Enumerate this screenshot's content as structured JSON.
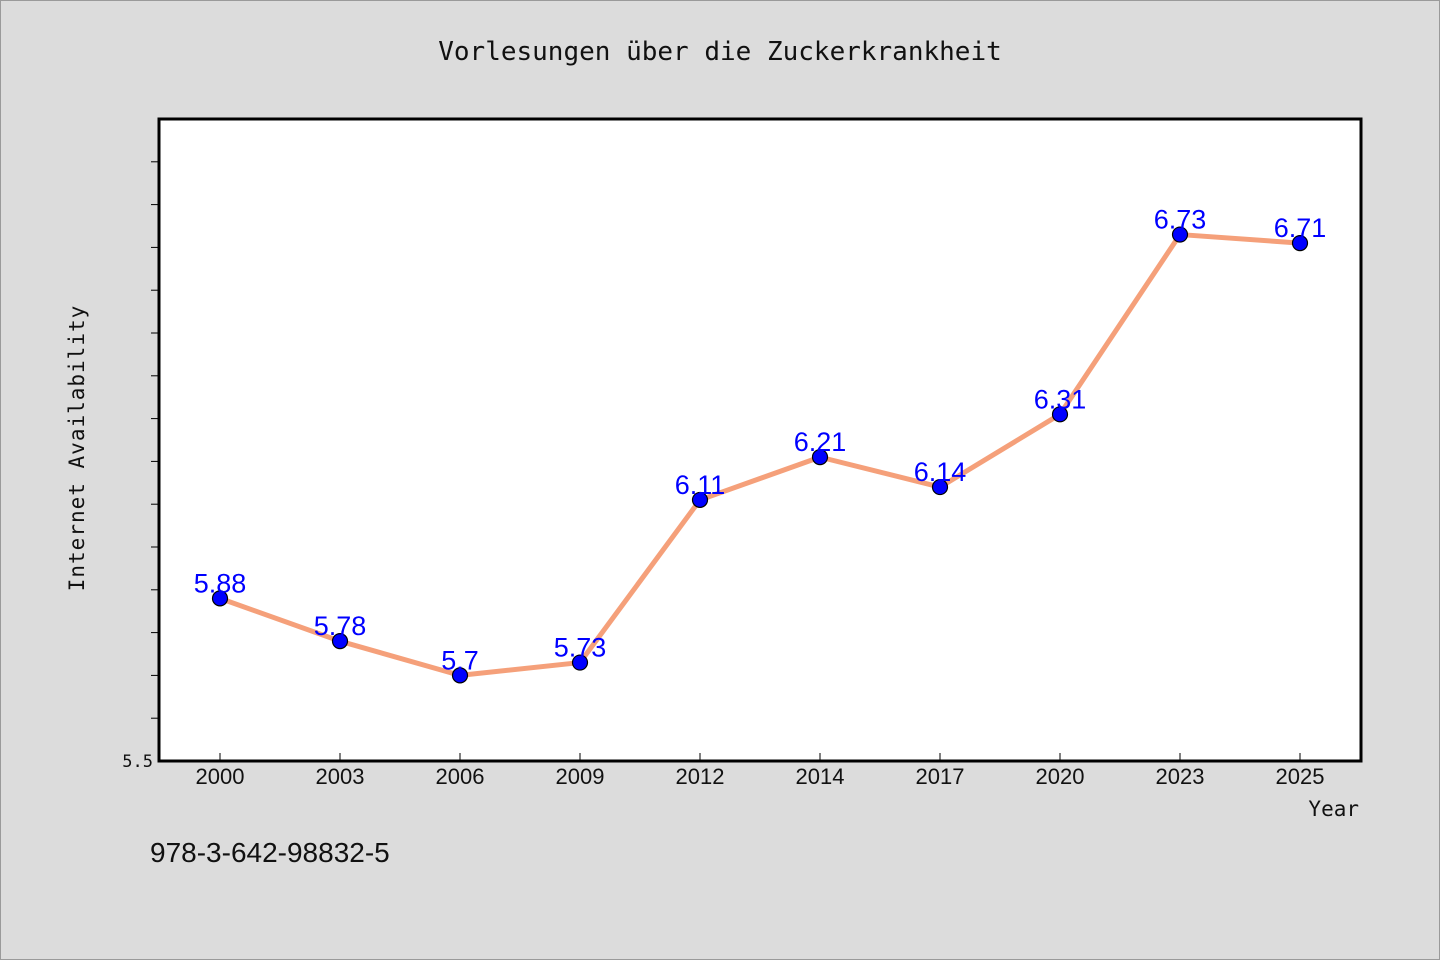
{
  "chart_data": {
    "type": "line",
    "title": "Vorlesungen über die Zuckerkrankheit",
    "xlabel": "Year",
    "ylabel": "Internet Availability",
    "categories": [
      "2000",
      "2003",
      "2006",
      "2009",
      "2012",
      "2014",
      "2017",
      "2020",
      "2023",
      "2025"
    ],
    "series": [
      {
        "values": [
          5.88,
          5.78,
          5.7,
          5.73,
          6.11,
          6.21,
          6.14,
          6.31,
          6.73,
          6.71
        ]
      }
    ],
    "data_labels": [
      "5.88",
      "5.78",
      "5.7",
      "5.73",
      "6.11",
      "6.21",
      "6.14",
      "6.31",
      "6.73",
      "6.71"
    ],
    "ylim": [
      5.5,
      7.0
    ],
    "yticks_labeled": [
      "5.5"
    ],
    "grid": false,
    "line_color": "#f5a07a",
    "marker_color": "#0000ff",
    "label_color": "#0000ff"
  },
  "footer_text": "978-3-642-98832-5"
}
